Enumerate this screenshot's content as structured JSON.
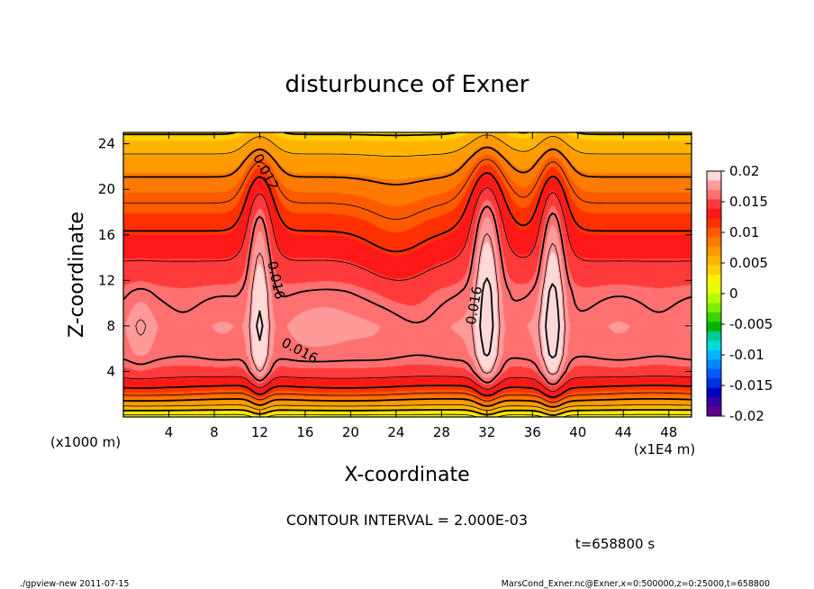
{
  "chart_data": {
    "type": "contour",
    "title": "disturbunce of Exner",
    "xlabel": "X-coordinate",
    "ylabel": "Z-coordinate",
    "x_unit_label": "(x1E4 m)",
    "y_unit_label": "(x1000 m)",
    "xlim": [
      0,
      50
    ],
    "ylim": [
      0,
      25
    ],
    "x_ticks": [
      4,
      8,
      12,
      16,
      20,
      24,
      28,
      32,
      36,
      40,
      44,
      48
    ],
    "y_ticks": [
      4,
      8,
      12,
      16,
      20,
      24
    ],
    "contour_interval_text": "CONTOUR INTERVAL = 2.000E-03",
    "contour_labels": [
      {
        "text": "0.012",
        "x": 12.5,
        "z": 21.5,
        "angle": 62
      },
      {
        "text": "0.016",
        "x": 13.4,
        "z": 12.0,
        "angle": 78
      },
      {
        "text": "0.016",
        "x": 15.5,
        "z": 5.8,
        "angle": 28
      },
      {
        "text": "0.016",
        "x": 30.9,
        "z": 9.8,
        "angle": -80
      }
    ],
    "colorbar": {
      "ticks": [
        "0.02",
        "0.015",
        "0.01",
        "0.005",
        "0",
        "-0.005",
        "-0.01",
        "-0.015",
        "-0.02"
      ],
      "levels_top_to_bottom": [
        "#ffd8d8",
        "#ff9a9a",
        "#ff7070",
        "#ff3a3a",
        "#ff1818",
        "#ff3000",
        "#ff5a00",
        "#ff7a00",
        "#ff9a00",
        "#ffb400",
        "#ffd200",
        "#fff000",
        "#e6ff00",
        "#b4ff00",
        "#78f000",
        "#3cd200",
        "#00b400",
        "#00c896",
        "#00dcdc",
        "#00b4ff",
        "#0088ff",
        "#0058ff",
        "#0030e0",
        "#0000c0",
        "#3800a0",
        "#600090"
      ]
    },
    "field": {
      "background": [
        {
          "z": 0,
          "value": 0.001
        },
        {
          "z": 1,
          "value": 0.006
        },
        {
          "z": 2,
          "value": 0.01
        },
        {
          "z": 3,
          "value": 0.013
        },
        {
          "z": 4,
          "value": 0.015
        },
        {
          "z": 5.5,
          "value": 0.0163
        },
        {
          "z": 8,
          "value": 0.0167
        },
        {
          "z": 11,
          "value": 0.0157
        },
        {
          "z": 14,
          "value": 0.0138
        },
        {
          "z": 17,
          "value": 0.0115
        },
        {
          "z": 20,
          "value": 0.009
        },
        {
          "z": 22.5,
          "value": 0.0067
        },
        {
          "z": 25,
          "value": 0.0038
        }
      ],
      "peaks": [
        {
          "x": 12.0,
          "z": 8.0,
          "width": 0.9,
          "height": 9,
          "amplitude": 0.0038
        },
        {
          "x": 12.0,
          "z": 19,
          "width": 1.5,
          "height": 6,
          "amplitude": 0.004
        },
        {
          "x": 32.0,
          "z": 9.0,
          "width": 1.1,
          "height": 10,
          "amplitude": 0.0044
        },
        {
          "x": 32.0,
          "z": 19,
          "width": 1.9,
          "height": 6,
          "amplitude": 0.004
        },
        {
          "x": 37.8,
          "z": 8.5,
          "width": 1.0,
          "height": 10,
          "amplitude": 0.0043
        },
        {
          "x": 37.8,
          "z": 19,
          "width": 1.5,
          "height": 6,
          "amplitude": 0.0036
        },
        {
          "x": 1.5,
          "z": 8.0,
          "width": 1.0,
          "height": 3,
          "amplitude": 0.0012
        },
        {
          "x": 18.8,
          "z": 8.5,
          "width": 2.8,
          "height": 3.2,
          "amplitude": 0.0011
        },
        {
          "x": 24.0,
          "z": 15,
          "width": 3.0,
          "height": 6,
          "amplitude": -0.0014
        }
      ]
    }
  },
  "footer": {
    "time_label": "t=658800 s",
    "left_note": "./gpview-new  2011-07-15",
    "right_note": "MarsCond_Exner.nc@Exner,x=0:500000,z=0:25000,t=658800"
  }
}
